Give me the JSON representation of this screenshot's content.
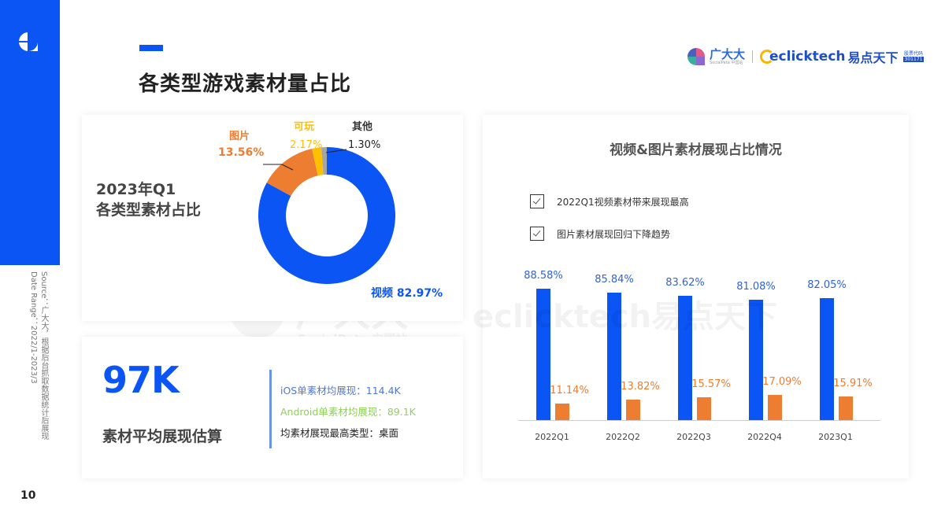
{
  "page": {
    "title": "各类型游戏素材量占比",
    "page_number": "10",
    "source_line": "Source：广大大，根据后台抓取数据统计后展现",
    "date_line": "Date Range：2022/1-2023/3"
  },
  "brand": {
    "gdd_cn": "广大大",
    "gdd_en": "SocialPeta 中国站",
    "ect_word": "eclicktech",
    "ect_cn": "易点天下",
    "stock_label": "股票代码",
    "stock_code": "301171"
  },
  "donut_card": {
    "heading_line1": "2023年Q1",
    "heading_line2": "各类型素材占比",
    "labels": {
      "image_name": "图片",
      "image_value": "13.56%",
      "playable_name": "可玩",
      "playable_value": "2.17%",
      "other_name": "其他",
      "other_value": "1.30%",
      "video": "视频 82.97%"
    }
  },
  "estimate_card": {
    "big_value": "97K",
    "label": "素材平均展现估算",
    "ios_line": "iOS单素材均展现：114.4K",
    "android_line": "Android单素材均展现：89.1K",
    "top_type_line": "均素材展现最高类型：桌面"
  },
  "bars_card": {
    "title": "视频&图片素材展现占比情况",
    "checks": [
      "2022Q1视频素材带来展现最高",
      "图片素材展现回归下降趋势"
    ]
  },
  "watermarks": {
    "gdd_cn": "广大大",
    "gdd_en": "SocialPeta 中国站",
    "ect": "eclicktech易点天下"
  },
  "colors": {
    "blue": "#0b55f5",
    "orange": "#ed7d31",
    "yellow": "#ffc000",
    "gray": "#a5a5a5",
    "green": "#8fcf5a",
    "ios_blue": "#4f79d6"
  },
  "chart_data": [
    {
      "type": "pie",
      "title": "2023年Q1 各类型素材占比",
      "donut": true,
      "categories": [
        "视频",
        "图片",
        "可玩",
        "其他"
      ],
      "values": [
        82.97,
        13.56,
        2.17,
        1.3
      ],
      "colors": [
        "#0b55f5",
        "#ed7d31",
        "#ffc000",
        "#a5a5a5"
      ]
    },
    {
      "type": "bar",
      "title": "视频&图片素材展现占比情况",
      "categories": [
        "2022Q1",
        "2022Q2",
        "2022Q3",
        "2022Q4",
        "2023Q1"
      ],
      "series": [
        {
          "name": "视频",
          "values": [
            88.58,
            85.84,
            83.62,
            81.08,
            82.05
          ],
          "labels": [
            "88.58%",
            "85.84%",
            "83.62%",
            "81.08%",
            "82.05%"
          ],
          "color": "#0b55f5"
        },
        {
          "name": "图片",
          "values": [
            11.14,
            13.82,
            15.57,
            17.09,
            15.91
          ],
          "labels": [
            "11.14%",
            "13.82%",
            "15.57%",
            "17.09%",
            "15.91%"
          ],
          "color": "#ed7d31"
        }
      ],
      "xlabel": "",
      "ylabel": "",
      "grid": false,
      "legend": "none"
    }
  ]
}
